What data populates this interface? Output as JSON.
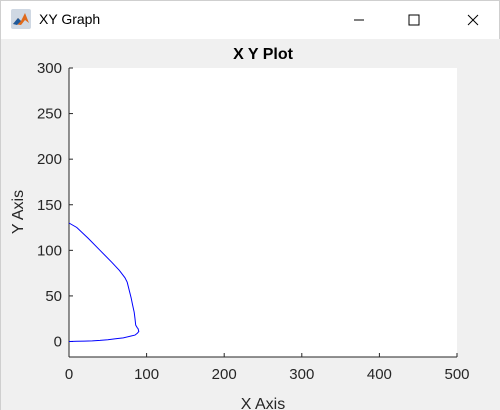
{
  "window": {
    "title": "XY Graph",
    "icon": "matlab-icon",
    "controls": [
      "minimize-icon",
      "maximize-icon",
      "close-icon"
    ]
  },
  "chart_data": {
    "type": "line",
    "title": "X Y Plot",
    "xlabel": "X Axis",
    "ylabel": "Y Axis",
    "xlim": [
      0,
      500
    ],
    "ylim": [
      -17,
      300
    ],
    "xticks": [
      0,
      100,
      200,
      300,
      400,
      500
    ],
    "yticks": [
      0,
      50,
      100,
      150,
      200,
      250,
      300
    ],
    "grid": false,
    "line_color": "#0000ff",
    "series": [
      {
        "x": [
          0,
          10,
          25,
          40,
          55,
          65,
          72,
          75,
          78,
          80,
          82,
          84,
          85,
          86,
          88,
          89,
          90,
          88,
          85,
          80,
          70,
          60,
          50,
          40,
          30,
          20,
          10,
          5,
          0
        ],
        "y": [
          130,
          125,
          113,
          100,
          87,
          78,
          70,
          65,
          55,
          48,
          40,
          32,
          25,
          18,
          15,
          14,
          11,
          9,
          7,
          6,
          4,
          3,
          2,
          1.2,
          0.7,
          0.4,
          0.2,
          0.1,
          0
        ]
      }
    ]
  }
}
